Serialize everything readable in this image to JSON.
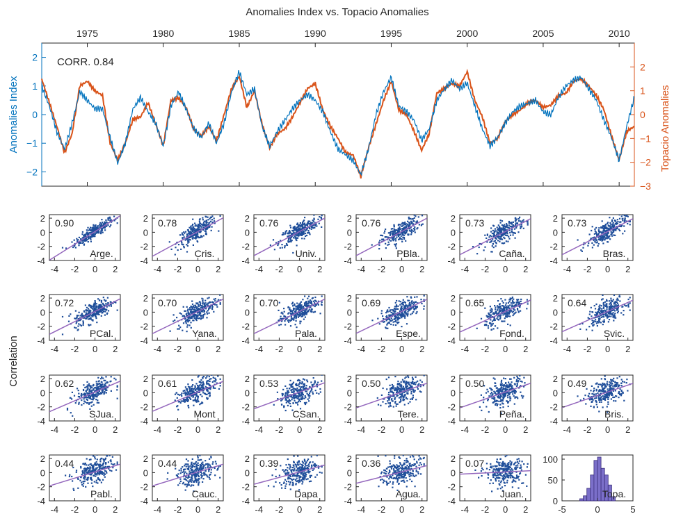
{
  "chart_data": [
    {
      "type": "line",
      "title": "Anomalies Index vs. Topacio Anomalies",
      "ylabel_left": "Anomalies Index",
      "ylabel_right": "Topacio Anomalies",
      "annotation": "CORR. 0.84",
      "x_range": [
        1972,
        2011
      ],
      "x_ticks": [
        "1975",
        "1980",
        "1985",
        "1990",
        "1995",
        "2000",
        "2005",
        "2010"
      ],
      "x_tick_values": [
        1975,
        1980,
        1985,
        1990,
        1995,
        2000,
        2005,
        2010
      ],
      "ylim_left": [
        -2.5,
        2.5
      ],
      "y_ticks_left": [
        "−2",
        "−1",
        "0",
        "1",
        "2"
      ],
      "ylim_right": [
        -3,
        3
      ],
      "y_ticks_right": [
        "−3",
        "−2",
        "−1",
        "0",
        "1",
        "2"
      ],
      "colors": {
        "left": "#0072BD",
        "right": "#D95319"
      },
      "series": [
        {
          "axis": "left",
          "x": [
            1972.0,
            1972.5,
            1973.0,
            1973.5,
            1974.0,
            1974.5,
            1975.0,
            1975.5,
            1976.0,
            1976.5,
            1977.0,
            1977.5,
            1978.0,
            1978.5,
            1979.0,
            1979.5,
            1980.0,
            1980.5,
            1981.0,
            1981.5,
            1982.0,
            1982.5,
            1983.0,
            1983.5,
            1984.0,
            1984.5,
            1985.0,
            1985.5,
            1986.0,
            1986.5,
            1987.0,
            1987.5,
            1988.0,
            1988.5,
            1989.0,
            1989.5,
            1990.0,
            1990.5,
            1991.0,
            1991.5,
            1992.0,
            1992.5,
            1993.0,
            1993.5,
            1994.0,
            1994.5,
            1995.0,
            1995.5,
            1996.0,
            1996.5,
            1997.0,
            1997.5,
            1998.0,
            1998.5,
            1999.0,
            1999.5,
            2000.0,
            2000.5,
            2001.0,
            2001.5,
            2002.0,
            2002.5,
            2003.0,
            2003.5,
            2004.0,
            2004.5,
            2005.0,
            2005.5,
            2006.0,
            2006.5,
            2007.0,
            2007.5,
            2008.0,
            2008.5,
            2009.0,
            2009.5,
            2010.0,
            2010.5,
            2011.0
          ],
          "y": [
            1.0,
            0.3,
            -0.6,
            -1.2,
            -0.3,
            0.8,
            0.5,
            0.2,
            0.2,
            -0.8,
            -1.7,
            -1.0,
            0.2,
            0.6,
            0.1,
            -0.3,
            -1.1,
            0.3,
            0.8,
            0.2,
            -0.5,
            -0.8,
            -0.3,
            -1.0,
            -0.3,
            0.8,
            1.5,
            0.7,
            0.9,
            -0.4,
            -1.1,
            -0.6,
            -0.2,
            0.2,
            0.5,
            0.7,
            0.5,
            0.1,
            -0.6,
            -1.2,
            -1.4,
            -1.6,
            -2.1,
            -1.2,
            0.0,
            0.8,
            1.3,
            0.3,
            0.1,
            -0.2,
            -0.9,
            -0.5,
            0.5,
            0.9,
            1.2,
            0.9,
            1.1,
            0.3,
            -0.5,
            -1.1,
            -0.8,
            -0.3,
            0.1,
            0.3,
            0.4,
            0.5,
            0.1,
            0.0,
            0.6,
            1.0,
            1.2,
            1.3,
            0.9,
            0.5,
            -0.2,
            -0.8,
            -1.6,
            -0.4,
            0.6
          ]
        },
        {
          "axis": "right",
          "x": [
            1972.0,
            1972.5,
            1973.0,
            1973.5,
            1974.0,
            1974.5,
            1975.0,
            1975.5,
            1976.0,
            1976.5,
            1977.0,
            1977.5,
            1978.0,
            1978.5,
            1979.0,
            1979.5,
            1980.0,
            1980.5,
            1981.0,
            1981.5,
            1982.0,
            1982.5,
            1983.0,
            1983.5,
            1984.0,
            1984.5,
            1985.0,
            1985.5,
            1986.0,
            1986.5,
            1987.0,
            1987.5,
            1988.0,
            1988.5,
            1989.0,
            1989.5,
            1990.0,
            1990.5,
            1991.0,
            1991.5,
            1992.0,
            1992.5,
            1993.0,
            1993.5,
            1994.0,
            1994.5,
            1995.0,
            1995.5,
            1996.0,
            1996.5,
            1997.0,
            1997.5,
            1998.0,
            1998.5,
            1999.0,
            1999.5,
            2000.0,
            2000.5,
            2001.0,
            2001.5,
            2002.0,
            2002.5,
            2003.0,
            2003.5,
            2004.0,
            2004.5,
            2005.0,
            2005.5,
            2006.0,
            2006.5,
            2007.0,
            2007.5,
            2008.0,
            2008.5,
            2009.0,
            2009.5,
            2010.0,
            2010.5,
            2011.0
          ],
          "y": [
            1.5,
            0.5,
            -0.5,
            -1.6,
            -0.8,
            1.2,
            1.4,
            1.0,
            0.8,
            -1.2,
            -1.9,
            -1.2,
            -0.2,
            -0.1,
            0.5,
            -0.4,
            -1.3,
            0.6,
            0.7,
            0.3,
            -0.6,
            -0.9,
            -0.5,
            -1.1,
            0.0,
            1.1,
            1.6,
            0.3,
            1.0,
            -0.4,
            -1.4,
            -0.8,
            -0.6,
            -0.1,
            0.5,
            1.1,
            1.3,
            0.2,
            -0.5,
            -1.0,
            -1.6,
            -1.7,
            -2.6,
            -1.4,
            -0.4,
            0.6,
            1.4,
            0.2,
            0.0,
            -0.7,
            -1.5,
            -0.8,
            0.9,
            1.1,
            1.3,
            1.2,
            1.8,
            0.6,
            -0.1,
            -1.2,
            -1.0,
            -0.3,
            0.0,
            0.2,
            0.5,
            0.6,
            0.3,
            0.4,
            0.8,
            0.9,
            1.4,
            1.5,
            1.2,
            0.8,
            0.2,
            -0.9,
            -1.9,
            -0.7,
            -0.5
          ]
        }
      ]
    },
    {
      "type": "scatter",
      "ylabel": "Correlation",
      "x_ticks": [
        "-4",
        "-2",
        "0",
        "2"
      ],
      "y_ticks": [
        "2",
        "0",
        "-2",
        "-4"
      ],
      "xlim": [
        -4.5,
        2.5
      ],
      "ylim": [
        -4,
        2.5
      ],
      "colors": {
        "points": "#1F4E9A",
        "fit": "#9467BD"
      },
      "panels": [
        {
          "corr": "0.90",
          "name": "Arge."
        },
        {
          "corr": "0.78",
          "name": "Cris."
        },
        {
          "corr": "0.76",
          "name": "Univ."
        },
        {
          "corr": "0.76",
          "name": "PBla."
        },
        {
          "corr": "0.73",
          "name": "Caña."
        },
        {
          "corr": "0.73",
          "name": "Bras."
        },
        {
          "corr": "0.72",
          "name": "PCal."
        },
        {
          "corr": "0.70",
          "name": "Yana."
        },
        {
          "corr": "0.70",
          "name": "Pala."
        },
        {
          "corr": "0.69",
          "name": "Espe."
        },
        {
          "corr": "0.65",
          "name": "Fond."
        },
        {
          "corr": "0.64",
          "name": "Svic."
        },
        {
          "corr": "0.62",
          "name": "SJua."
        },
        {
          "corr": "0.61",
          "name": "Mont"
        },
        {
          "corr": "0.53",
          "name": "CSan."
        },
        {
          "corr": "0.50",
          "name": "Tere."
        },
        {
          "corr": "0.50",
          "name": "Peña."
        },
        {
          "corr": "0.49",
          "name": "Bris."
        },
        {
          "corr": "0.44",
          "name": "Pabl."
        },
        {
          "corr": "0.44",
          "name": "Cauc."
        },
        {
          "corr": "0.39",
          "name": "Dapa"
        },
        {
          "corr": "0.36",
          "name": "Agua."
        },
        {
          "corr": "0.07",
          "name": "Juan."
        }
      ]
    },
    {
      "type": "bar",
      "name": "Topa.",
      "x_ticks": [
        "-5",
        "0",
        "5"
      ],
      "y_ticks": [
        "0",
        "50",
        "100"
      ],
      "xlim": [
        -5,
        5
      ],
      "ylim": [
        0,
        110
      ],
      "bin_width": 0.5,
      "bin_centers": [
        -2.25,
        -1.75,
        -1.25,
        -0.75,
        -0.25,
        0.25,
        0.75,
        1.25,
        1.75,
        2.25
      ],
      "values": [
        5,
        12,
        30,
        62,
        97,
        105,
        78,
        62,
        38,
        10
      ],
      "colors": {
        "bar": "#7B6FC9",
        "edge": "#3A2E7A"
      }
    }
  ]
}
